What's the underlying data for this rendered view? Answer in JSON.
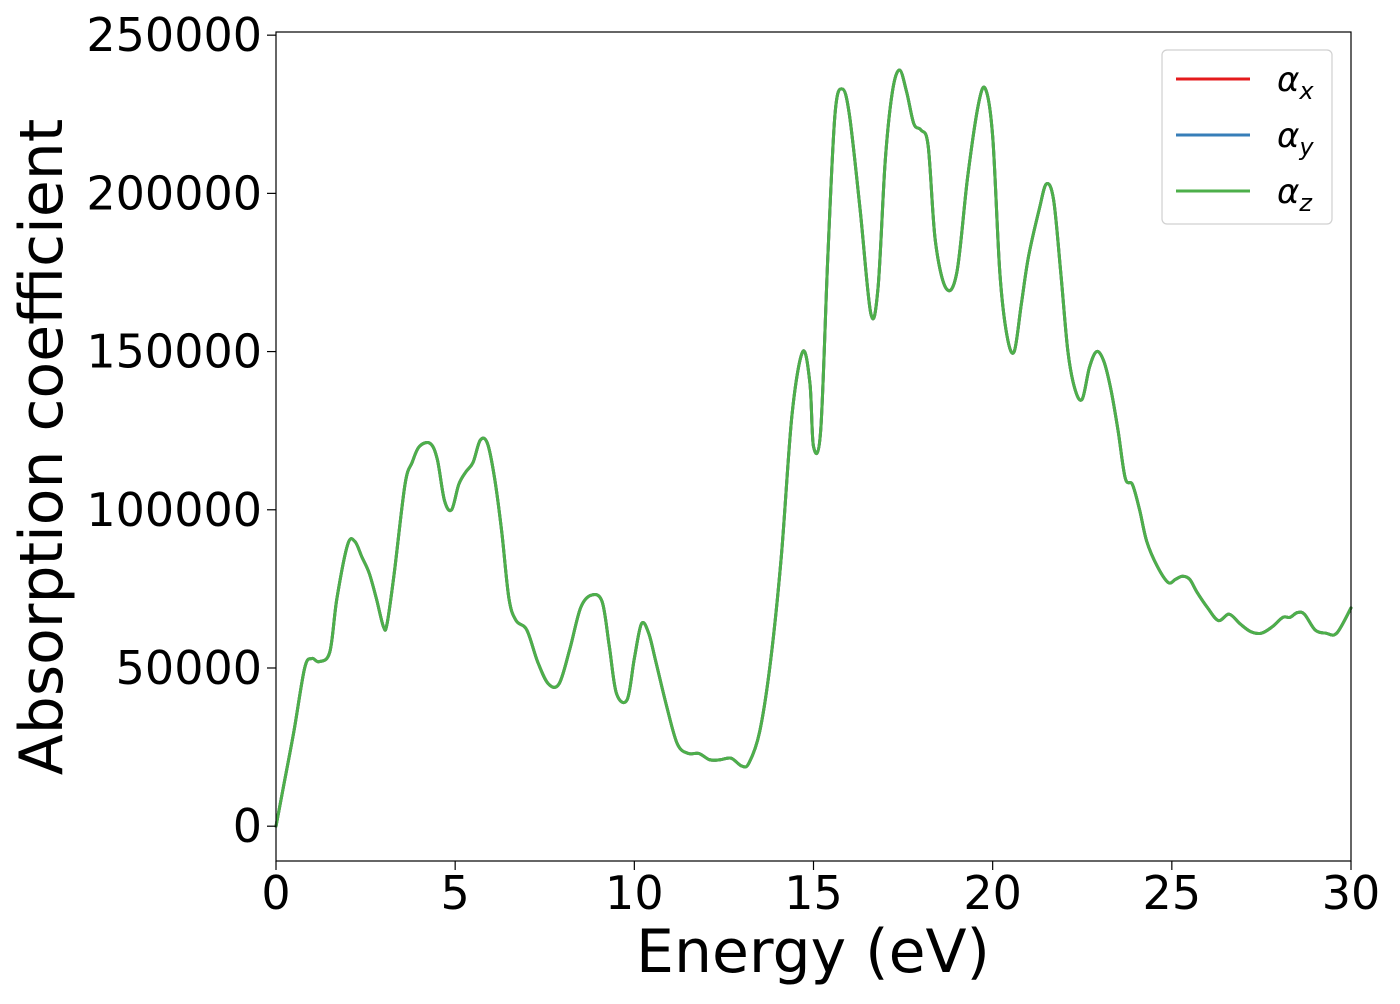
{
  "chart_data": {
    "type": "line",
    "xlabel": "Energy (eV)",
    "ylabel": "Absorption coefficient",
    "xlim": [
      0,
      30
    ],
    "ylim": [
      -11000,
      251000
    ],
    "x_ticks": [
      "0",
      "5",
      "10",
      "15",
      "20",
      "25",
      "30"
    ],
    "y_ticks": [
      "0",
      "50000",
      "100000",
      "150000",
      "200000",
      "250000"
    ],
    "grid": false,
    "legend_position": "top-right",
    "series": [
      {
        "name": "α_x",
        "symbol": "α",
        "subscript": "x",
        "color": "#e41a1c"
      },
      {
        "name": "α_y",
        "symbol": "α",
        "subscript": "y",
        "color": "#377eb8"
      },
      {
        "name": "α_z",
        "symbol": "α",
        "subscript": "z",
        "color": "#4daf4a"
      }
    ],
    "x": [
      0,
      0.2,
      0.5,
      0.8,
      1.0,
      1.2,
      1.5,
      1.7,
      2.0,
      2.2,
      2.4,
      2.6,
      2.8,
      3.0,
      3.1,
      3.3,
      3.6,
      3.8,
      4.0,
      4.3,
      4.5,
      4.7,
      4.9,
      5.1,
      5.3,
      5.5,
      5.7,
      5.9,
      6.1,
      6.3,
      6.5,
      6.7,
      7.0,
      7.3,
      7.6,
      7.9,
      8.2,
      8.5,
      8.8,
      9.1,
      9.3,
      9.5,
      9.8,
      10.0,
      10.2,
      10.4,
      10.6,
      10.9,
      11.2,
      11.5,
      11.8,
      12.1,
      12.4,
      12.7,
      13.0,
      13.2,
      13.5,
      13.8,
      14.1,
      14.4,
      14.7,
      14.9,
      15.0,
      15.2,
      15.4,
      15.6,
      15.8,
      16.0,
      16.3,
      16.6,
      16.8,
      17.0,
      17.2,
      17.4,
      17.6,
      17.8,
      18.0,
      18.2,
      18.4,
      18.7,
      19.0,
      19.3,
      19.6,
      19.8,
      20.0,
      20.2,
      20.4,
      20.6,
      20.8,
      21.0,
      21.3,
      21.5,
      21.7,
      21.9,
      22.1,
      22.3,
      22.5,
      22.7,
      22.9,
      23.1,
      23.3,
      23.5,
      23.7,
      23.9,
      24.1,
      24.3,
      24.6,
      24.9,
      25.1,
      25.3,
      25.5,
      25.7,
      26.0,
      26.3,
      26.6,
      26.9,
      27.2,
      27.5,
      27.8,
      28.1,
      28.3,
      28.5,
      28.7,
      29.0,
      29.3,
      29.6,
      30.0
    ],
    "y": [
      0,
      12000,
      30000,
      50000,
      53000,
      52000,
      55000,
      72000,
      89000,
      90000,
      85000,
      80000,
      72000,
      63000,
      64000,
      80000,
      108000,
      115000,
      120000,
      121000,
      116000,
      103000,
      100000,
      108000,
      112000,
      115000,
      122000,
      121000,
      110000,
      93000,
      72000,
      65000,
      62000,
      52000,
      45000,
      45000,
      56000,
      69000,
      73000,
      71000,
      57000,
      42000,
      40000,
      53000,
      64000,
      61000,
      52000,
      38000,
      26000,
      23000,
      23000,
      21000,
      21000,
      21500,
      19000,
      20000,
      30000,
      52000,
      85000,
      130000,
      150000,
      140000,
      120000,
      125000,
      180000,
      225000,
      233000,
      225000,
      195000,
      162000,
      170000,
      210000,
      232000,
      239000,
      232000,
      222000,
      220000,
      215000,
      185000,
      170000,
      175000,
      205000,
      228000,
      233000,
      218000,
      175000,
      155000,
      150000,
      165000,
      180000,
      195000,
      203000,
      198000,
      175000,
      150000,
      138000,
      135000,
      145000,
      150000,
      147000,
      138000,
      125000,
      110000,
      108000,
      100000,
      90000,
      82000,
      77000,
      78000,
      79000,
      78000,
      74000,
      69000,
      65000,
      67000,
      64000,
      61500,
      61000,
      63000,
      66000,
      66000,
      67500,
      67000,
      62000,
      61000,
      61000,
      69000
    ]
  }
}
